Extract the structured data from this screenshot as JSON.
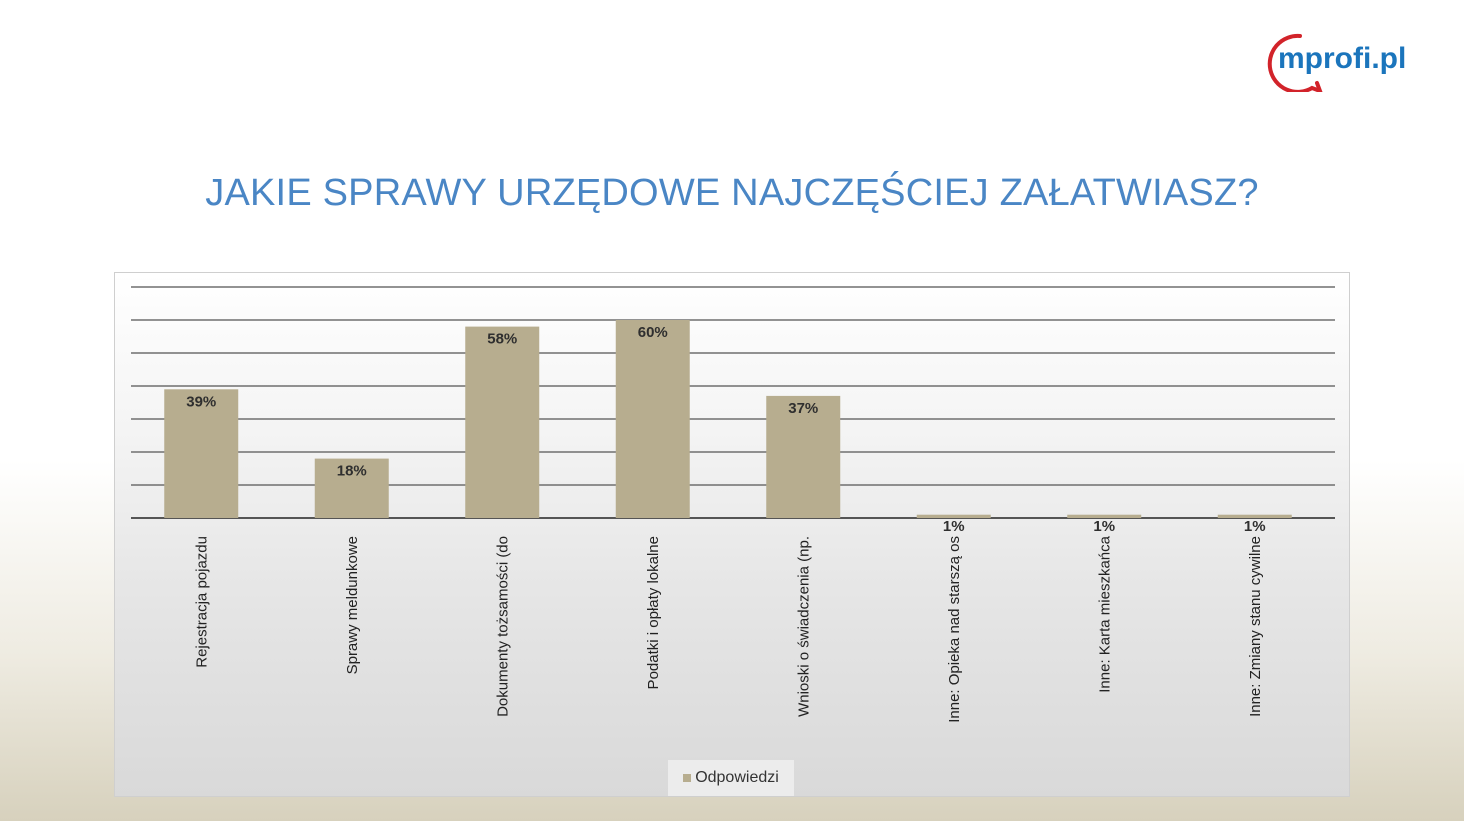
{
  "brand": {
    "logo_text": "mprofi.pl",
    "logo_color": "#d2232a",
    "logo_accent": "#1b75bc"
  },
  "page": {
    "title": "JAKIE SPRAWY URZĘDOWE NAJCZĘŚCIEJ ZAŁATWIASZ?"
  },
  "colors": {
    "bar": "#b7ad8f",
    "title": "#4a86c5",
    "grid": "#6f6f6f"
  },
  "chart_data": {
    "type": "bar",
    "categories": [
      "Rejestracja pojazdu",
      "Sprawy meldunkowe",
      "Dokumenty tożsamości (do",
      "Podatki i opłaty lokalne",
      "Wnioski o świadczenia (np.",
      "Inne: Opieka nad starszą os",
      "Inne: Karta mieszkańca",
      "Inne: Zmiany stanu cywilne"
    ],
    "series": [
      {
        "name": "Odpowiedzi",
        "values": [
          39,
          18,
          58,
          60,
          37,
          1,
          1,
          1
        ],
        "labels": [
          "39%",
          "18%",
          "58%",
          "60%",
          "37%",
          "1%",
          "1%",
          "1%"
        ]
      }
    ],
    "ylim": [
      0,
      70
    ],
    "gridlines": [
      0,
      10,
      20,
      30,
      40,
      50,
      60,
      70
    ],
    "grid": true,
    "y_axis_labels_visible": false,
    "legend_position": "bottom"
  }
}
